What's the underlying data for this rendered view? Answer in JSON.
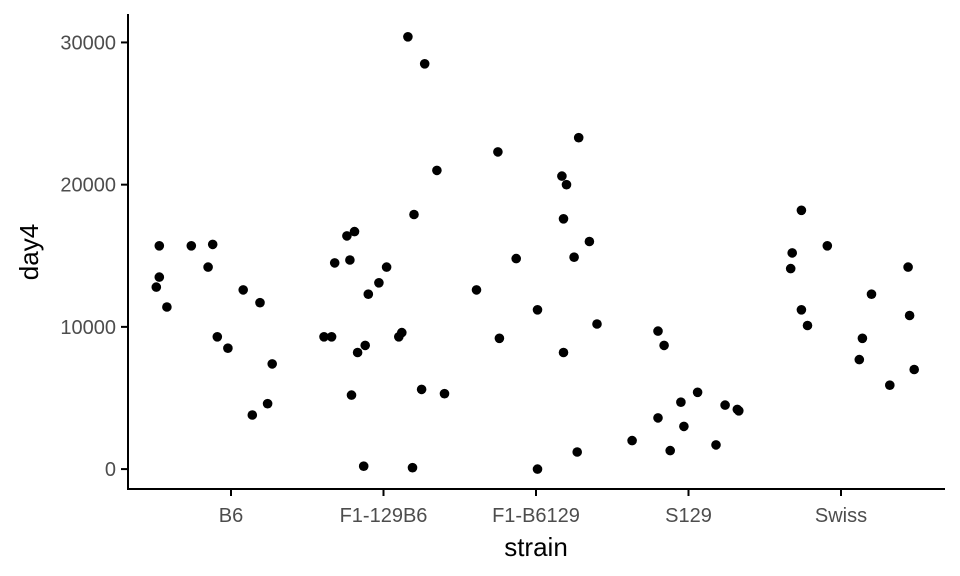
{
  "chart_data": {
    "type": "scatter",
    "xlabel": "strain",
    "ylabel": "day4",
    "categories": [
      "B6",
      "F1-129B6",
      "F1-B6129",
      "S129",
      "Swiss"
    ],
    "ylim": [
      -1400,
      32000
    ],
    "yticks": [
      0,
      10000,
      20000,
      30000
    ],
    "ytick_labels": [
      "0",
      "10000",
      "20000",
      "30000"
    ],
    "grid": false,
    "legend": "none",
    "point_color": "#000000",
    "points": [
      {
        "x": "B6",
        "offset": -0.49,
        "y": 12800
      },
      {
        "x": "B6",
        "offset": -0.47,
        "y": 13500
      },
      {
        "x": "B6",
        "offset": -0.47,
        "y": 15700
      },
      {
        "x": "B6",
        "offset": -0.42,
        "y": 11400
      },
      {
        "x": "B6",
        "offset": -0.26,
        "y": 15700
      },
      {
        "x": "B6",
        "offset": -0.15,
        "y": 14200
      },
      {
        "x": "B6",
        "offset": -0.12,
        "y": 15800
      },
      {
        "x": "B6",
        "offset": -0.09,
        "y": 9300
      },
      {
        "x": "B6",
        "offset": -0.02,
        "y": 8500
      },
      {
        "x": "B6",
        "offset": 0.08,
        "y": 12600
      },
      {
        "x": "B6",
        "offset": 0.14,
        "y": 3800
      },
      {
        "x": "B6",
        "offset": 0.19,
        "y": 11700
      },
      {
        "x": "B6",
        "offset": 0.24,
        "y": 4600
      },
      {
        "x": "B6",
        "offset": 0.27,
        "y": 7400
      },
      {
        "x": "F1-129B6",
        "offset": -0.39,
        "y": 9300
      },
      {
        "x": "F1-129B6",
        "offset": -0.34,
        "y": 9300
      },
      {
        "x": "F1-129B6",
        "offset": -0.32,
        "y": 14500
      },
      {
        "x": "F1-129B6",
        "offset": -0.24,
        "y": 16400
      },
      {
        "x": "F1-129B6",
        "offset": -0.22,
        "y": 14700
      },
      {
        "x": "F1-129B6",
        "offset": -0.21,
        "y": 5200
      },
      {
        "x": "F1-129B6",
        "offset": -0.19,
        "y": 16700
      },
      {
        "x": "F1-129B6",
        "offset": -0.17,
        "y": 8200
      },
      {
        "x": "F1-129B6",
        "offset": -0.12,
        "y": 8700
      },
      {
        "x": "F1-129B6",
        "offset": -0.13,
        "y": 200
      },
      {
        "x": "F1-129B6",
        "offset": -0.1,
        "y": 12300
      },
      {
        "x": "F1-129B6",
        "offset": -0.03,
        "y": 13100
      },
      {
        "x": "F1-129B6",
        "offset": 0.02,
        "y": 14200
      },
      {
        "x": "F1-129B6",
        "offset": 0.1,
        "y": 9300
      },
      {
        "x": "F1-129B6",
        "offset": 0.12,
        "y": 9600
      },
      {
        "x": "F1-129B6",
        "offset": 0.16,
        "y": 30400
      },
      {
        "x": "F1-129B6",
        "offset": 0.19,
        "y": 100
      },
      {
        "x": "F1-129B6",
        "offset": 0.2,
        "y": 17900
      },
      {
        "x": "F1-129B6",
        "offset": 0.25,
        "y": 5600
      },
      {
        "x": "F1-129B6",
        "offset": 0.27,
        "y": 28500
      },
      {
        "x": "F1-129B6",
        "offset": 0.35,
        "y": 21000
      },
      {
        "x": "F1-129B6",
        "offset": 0.4,
        "y": 5300
      },
      {
        "x": "F1-B6129",
        "offset": -0.39,
        "y": 12600
      },
      {
        "x": "F1-B6129",
        "offset": -0.25,
        "y": 22300
      },
      {
        "x": "F1-B6129",
        "offset": -0.24,
        "y": 9200
      },
      {
        "x": "F1-B6129",
        "offset": -0.13,
        "y": 14800
      },
      {
        "x": "F1-B6129",
        "offset": 0.01,
        "y": 11200
      },
      {
        "x": "F1-B6129",
        "offset": 0.01,
        "y": 0
      },
      {
        "x": "F1-B6129",
        "offset": 0.17,
        "y": 20600
      },
      {
        "x": "F1-B6129",
        "offset": 0.18,
        "y": 17600
      },
      {
        "x": "F1-B6129",
        "offset": 0.18,
        "y": 8200
      },
      {
        "x": "F1-B6129",
        "offset": 0.2,
        "y": 20000
      },
      {
        "x": "F1-B6129",
        "offset": 0.25,
        "y": 14900
      },
      {
        "x": "F1-B6129",
        "offset": 0.27,
        "y": 1200
      },
      {
        "x": "F1-B6129",
        "offset": 0.28,
        "y": 23300
      },
      {
        "x": "F1-B6129",
        "offset": 0.35,
        "y": 16000
      },
      {
        "x": "F1-B6129",
        "offset": 0.4,
        "y": 10200
      },
      {
        "x": "S129",
        "offset": -0.37,
        "y": 2000
      },
      {
        "x": "S129",
        "offset": -0.2,
        "y": 9700
      },
      {
        "x": "S129",
        "offset": -0.2,
        "y": 3600
      },
      {
        "x": "S129",
        "offset": -0.16,
        "y": 8700
      },
      {
        "x": "S129",
        "offset": -0.12,
        "y": 1300
      },
      {
        "x": "S129",
        "offset": -0.05,
        "y": 4700
      },
      {
        "x": "S129",
        "offset": -0.03,
        "y": 3000
      },
      {
        "x": "S129",
        "offset": 0.06,
        "y": 5400
      },
      {
        "x": "S129",
        "offset": 0.18,
        "y": 1700
      },
      {
        "x": "S129",
        "offset": 0.24,
        "y": 4500
      },
      {
        "x": "S129",
        "offset": 0.32,
        "y": 4200
      },
      {
        "x": "S129",
        "offset": 0.33,
        "y": 4100
      },
      {
        "x": "Swiss",
        "offset": -0.33,
        "y": 14100
      },
      {
        "x": "Swiss",
        "offset": -0.32,
        "y": 15200
      },
      {
        "x": "Swiss",
        "offset": -0.26,
        "y": 18200
      },
      {
        "x": "Swiss",
        "offset": -0.26,
        "y": 11200
      },
      {
        "x": "Swiss",
        "offset": -0.22,
        "y": 10100
      },
      {
        "x": "Swiss",
        "offset": -0.09,
        "y": 15700
      },
      {
        "x": "Swiss",
        "offset": 0.12,
        "y": 7700
      },
      {
        "x": "Swiss",
        "offset": 0.14,
        "y": 9200
      },
      {
        "x": "Swiss",
        "offset": 0.2,
        "y": 12300
      },
      {
        "x": "Swiss",
        "offset": 0.32,
        "y": 5900
      },
      {
        "x": "Swiss",
        "offset": 0.44,
        "y": 14200
      },
      {
        "x": "Swiss",
        "offset": 0.45,
        "y": 10800
      },
      {
        "x": "Swiss",
        "offset": 0.48,
        "y": 7000
      }
    ]
  }
}
